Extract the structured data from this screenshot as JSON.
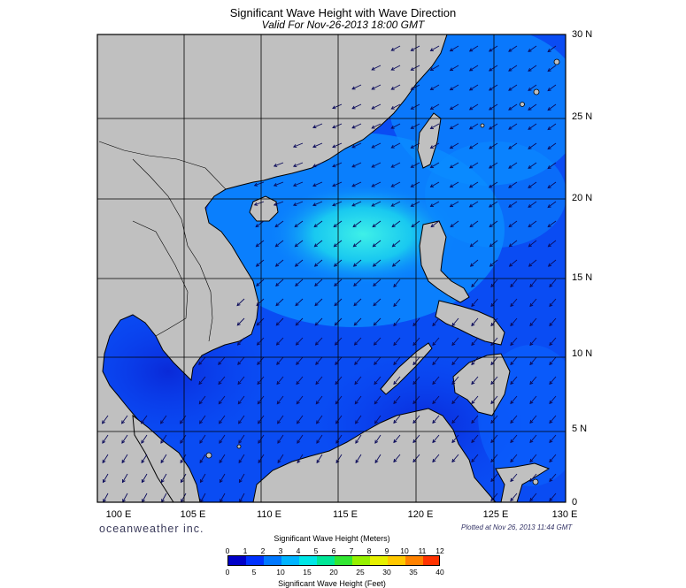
{
  "header": {
    "title": "Significant Wave Height with Wave Direction",
    "subtitle": "Valid For Nov-26-2013 18:00 GMT"
  },
  "map": {
    "lat_labels": [
      "30 N",
      "25 N",
      "20 N",
      "15 N",
      "10 N",
      "5 N",
      "0"
    ],
    "lon_labels": [
      "100 E",
      "105 E",
      "110 E",
      "115 E",
      "120 E",
      "125 E",
      "130 E"
    ],
    "land_color": "#c0c0c0",
    "ocean_colors": {
      "low": "#0a2fe6",
      "mid": "#0a64ff",
      "high": "#19d2f0"
    },
    "arrow_color": "#0a0a5a"
  },
  "footer": {
    "brand": "oceanweather inc.",
    "plotted": "Plotted at Nov 26, 2013 11:44 GMT"
  },
  "colorbar": {
    "title_meters": "Significant Wave Height (Meters)",
    "title_feet": "Significant Wave Height (Feet)",
    "meters_ticks": [
      "0",
      "1",
      "2",
      "3",
      "4",
      "5",
      "6",
      "7",
      "8",
      "9",
      "10",
      "11",
      "12"
    ],
    "feet_ticks": [
      "0",
      "5",
      "10",
      "15",
      "20",
      "25",
      "30",
      "35",
      "40"
    ],
    "colors": [
      "#0000c8",
      "#0032ff",
      "#0078ff",
      "#00b4ff",
      "#00e6e6",
      "#00e696",
      "#32e632",
      "#96f000",
      "#e6f000",
      "#ffc800",
      "#ff8200",
      "#ff3200"
    ]
  }
}
